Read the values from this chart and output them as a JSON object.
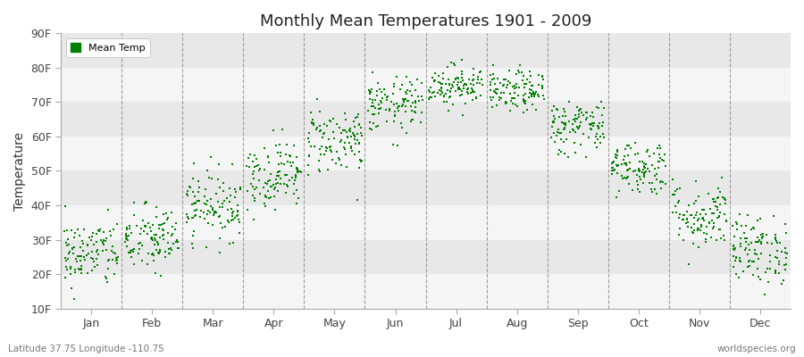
{
  "title": "Monthly Mean Temperatures 1901 - 2009",
  "ylabel": "Temperature",
  "subtitle_left": "Latitude 37.75 Longitude -110.75",
  "subtitle_right": "worldspecies.org",
  "legend_label": "Mean Temp",
  "dot_color": "#008000",
  "dot_size": 3,
  "ylim_min": 10,
  "ylim_max": 90,
  "yticks": [
    10,
    20,
    30,
    40,
    50,
    60,
    70,
    80,
    90
  ],
  "ytick_labels": [
    "10F",
    "20F",
    "30F",
    "40F",
    "50F",
    "60F",
    "70F",
    "80F",
    "90F"
  ],
  "months": [
    "Jan",
    "Feb",
    "Mar",
    "Apr",
    "May",
    "Jun",
    "Jul",
    "Aug",
    "Sep",
    "Oct",
    "Nov",
    "Dec"
  ],
  "month_means_F": [
    26,
    30,
    40,
    49,
    59,
    69,
    75,
    73,
    63,
    51,
    37,
    27
  ],
  "month_std_F": [
    5,
    5,
    5,
    5,
    5,
    4,
    3,
    3,
    4,
    4,
    5,
    5
  ],
  "n_years": 109,
  "seed": 42,
  "band_colors": [
    "#f5f5f5",
    "#e8e8e8"
  ],
  "vline_color": "#888888",
  "fig_bg": "#ffffff",
  "plot_bg": "#ffffff"
}
